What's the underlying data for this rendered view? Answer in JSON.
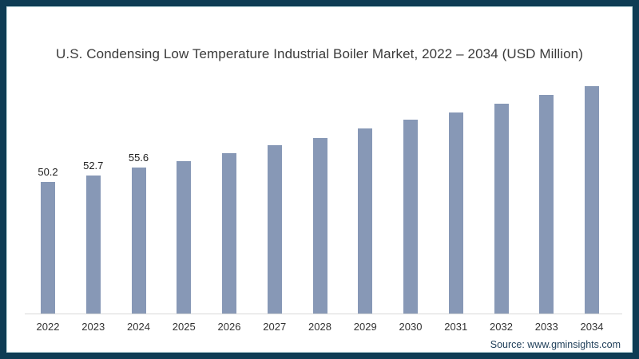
{
  "frame": {
    "border_color": "#0e3c54",
    "background": "#ffffff"
  },
  "title": "U.S. Condensing Low Temperature Industrial Boiler Market, 2022 – 2034 (USD Million)",
  "source": "Source: www.gminsights.com",
  "chart_data": {
    "type": "bar",
    "title": "U.S. Condensing Low Temperature Industrial Boiler Market, 2022 – 2034 (USD Million)",
    "categories": [
      "2022",
      "2023",
      "2024",
      "2025",
      "2026",
      "2027",
      "2028",
      "2029",
      "2030",
      "2031",
      "2032",
      "2033",
      "2034"
    ],
    "values": [
      50.2,
      52.7,
      55.6,
      58.3,
      61.3,
      64.3,
      67.0,
      70.5,
      74.1,
      76.8,
      80.2,
      83.4,
      86.8
    ],
    "data_labels": [
      "50.2",
      "52.7",
      "55.6",
      "",
      "",
      "",
      "",
      "",
      "",
      "",
      "",
      "",
      ""
    ],
    "unit": "USD Million",
    "xlabel": "",
    "ylabel": "",
    "ylim": [
      0,
      100
    ],
    "grid": false,
    "legend": "none",
    "bar_color": "#8798B6",
    "axis_line_color": "#d9d9d9"
  }
}
